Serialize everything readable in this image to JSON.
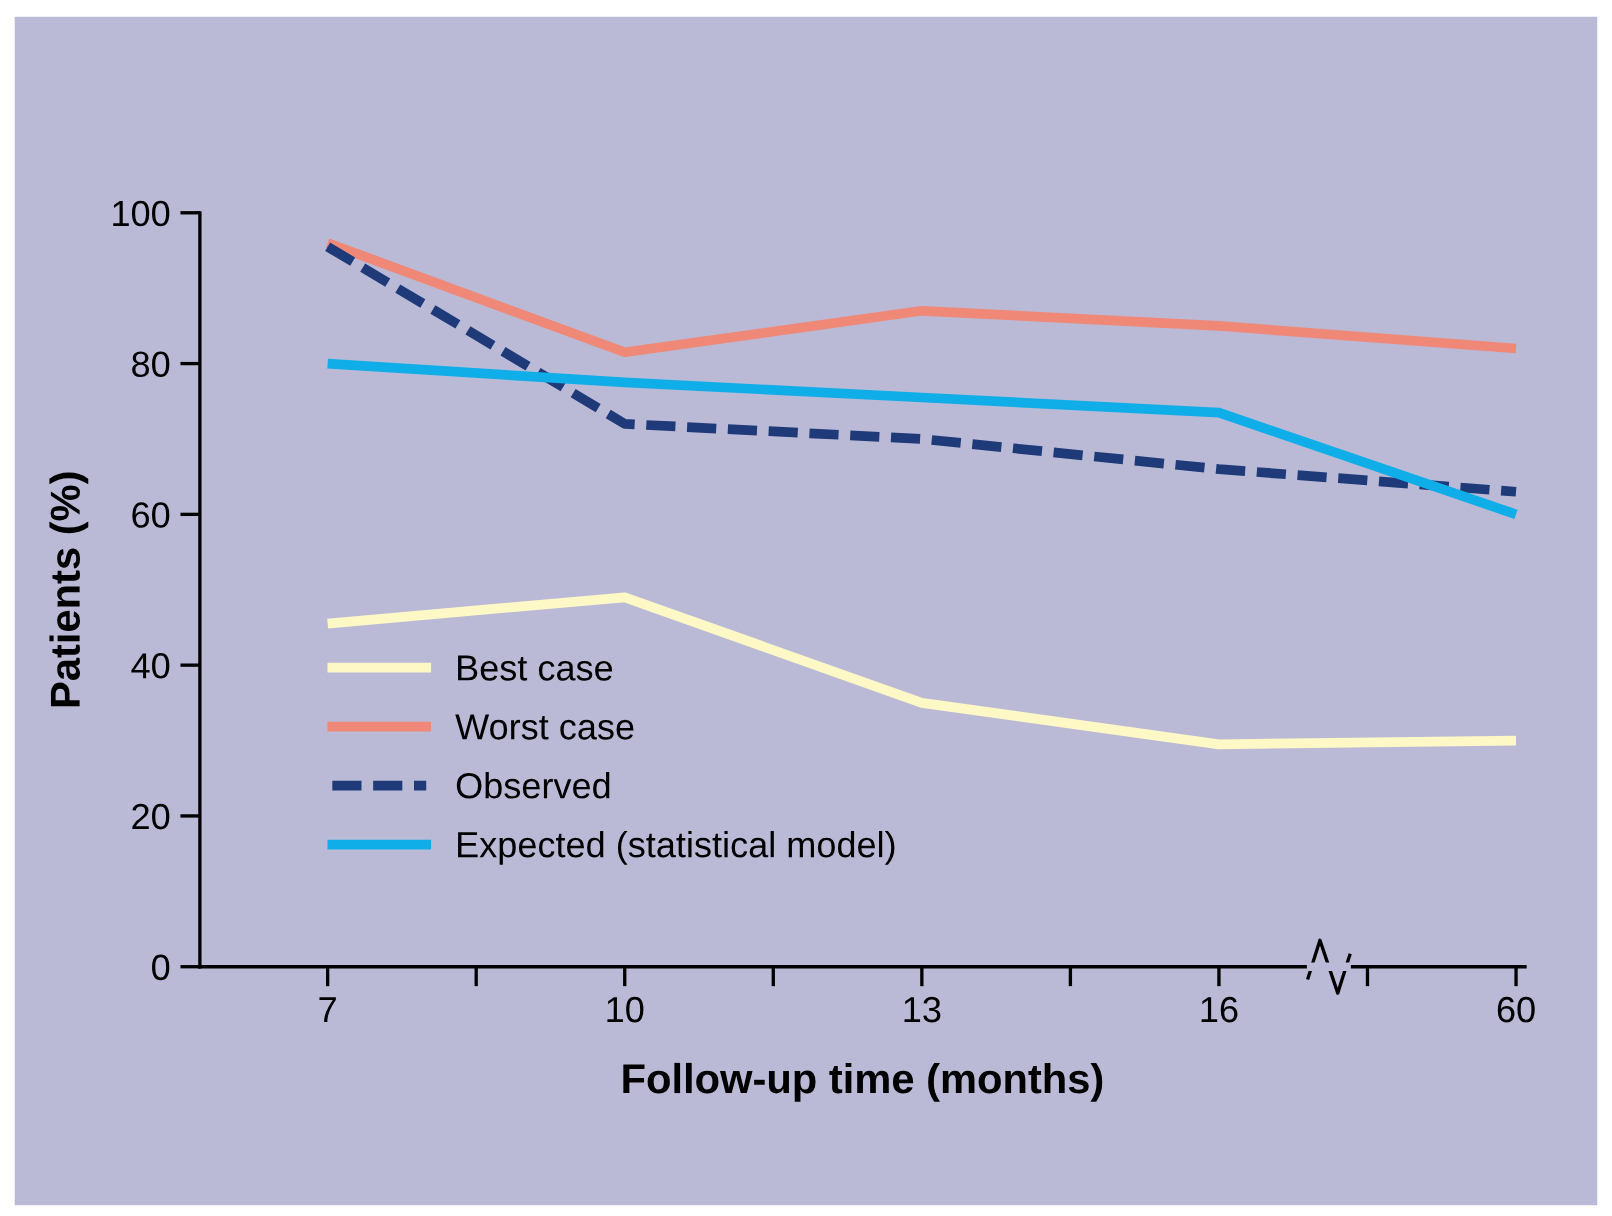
{
  "chart_data": {
    "type": "line",
    "xlabel": "Follow-up time (months)",
    "ylabel": "Patients (%)",
    "categories": [
      "7",
      "10",
      "13",
      "16",
      "60"
    ],
    "ylim": [
      0,
      100
    ],
    "yticks": [
      0,
      20,
      40,
      60,
      80,
      100
    ],
    "grid": false,
    "legend": "bottom left",
    "marker": "none",
    "series": [
      {
        "name": "Best case",
        "color": "#fdf8c6",
        "line_style": "solid",
        "values": [
          45.5,
          49,
          35,
          29.5,
          30
        ]
      },
      {
        "name": "Worst case",
        "color": "#f08878",
        "line_style": "solid",
        "values": [
          96,
          81.5,
          87,
          85,
          82
        ]
      },
      {
        "name": "Observed",
        "color": "#1f3a78",
        "line_style": "dashed",
        "values": [
          95.5,
          72,
          70,
          66,
          63
        ]
      },
      {
        "name": "Expected (statistical model)",
        "color": "#10aee8",
        "line_style": "solid",
        "values": [
          80,
          77.5,
          75.5,
          73.5,
          60
        ]
      }
    ]
  }
}
